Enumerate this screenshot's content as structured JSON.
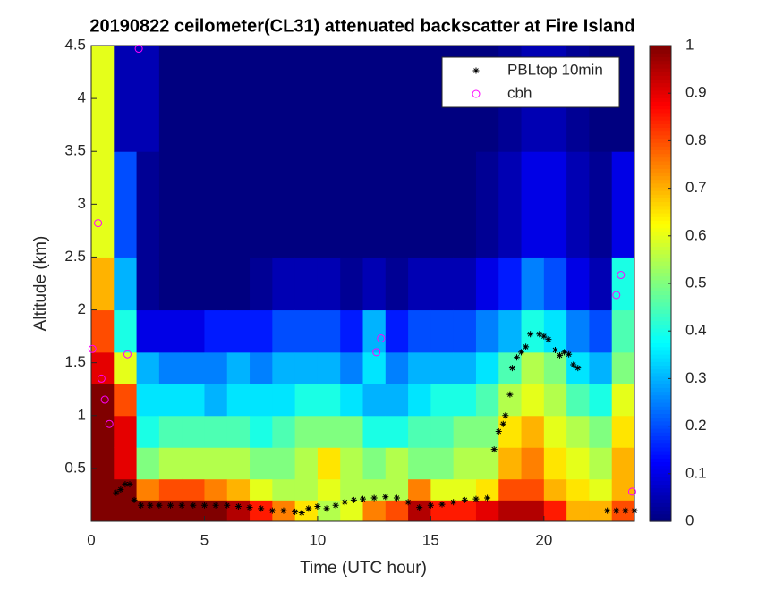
{
  "chart_data": {
    "type": "heatmap",
    "title": "20190822 ceilometer(CL31) attenuated backscatter at Fire Island",
    "x_label": "Time (UTC hour)",
    "y_label": "Altitude (km)",
    "xlim": [
      0,
      24
    ],
    "ylim": [
      0,
      4.5
    ],
    "xticks": [
      0,
      5,
      10,
      15,
      20
    ],
    "yticks": [
      0.5,
      1,
      1.5,
      2,
      2.5,
      3,
      3.5,
      4,
      4.5
    ],
    "colormap": "jet",
    "clim": [
      0,
      1
    ],
    "cticks": [
      0,
      0.1,
      0.2,
      0.3,
      0.4,
      0.5,
      0.6,
      0.7,
      0.8,
      0.9,
      1
    ],
    "legend": "upper right",
    "heatmap": {
      "x_edges": [
        0,
        1,
        2,
        3,
        4,
        5,
        6,
        7,
        8,
        9,
        10,
        11,
        12,
        13,
        14,
        15,
        16,
        17,
        18,
        19,
        20,
        21,
        22,
        23,
        24
      ],
      "y_edges": [
        0,
        0.2,
        0.4,
        0.7,
        1.0,
        1.3,
        1.6,
        2.0,
        2.5,
        3.5,
        4.5
      ],
      "values": [
        [
          1,
          1,
          1,
          1,
          1,
          0.9,
          0.8,
          0.7,
          0.6,
          0.6
        ],
        [
          1,
          1,
          0.9,
          0.9,
          0.8,
          0.6,
          0.4,
          0.3,
          0.2,
          0.05
        ],
        [
          1,
          0.75,
          0.5,
          0.4,
          0.35,
          0.3,
          0.1,
          0.02,
          0.02,
          0.05
        ],
        [
          1,
          0.8,
          0.55,
          0.45,
          0.35,
          0.25,
          0.1,
          0,
          0,
          0
        ],
        [
          1,
          0.8,
          0.55,
          0.45,
          0.35,
          0.25,
          0.1,
          0,
          0,
          0
        ],
        [
          1,
          0.75,
          0.55,
          0.45,
          0.3,
          0.25,
          0.15,
          0,
          0,
          0
        ],
        [
          0.95,
          0.7,
          0.55,
          0.45,
          0.35,
          0.3,
          0.15,
          0,
          0,
          0
        ],
        [
          0.85,
          0.6,
          0.5,
          0.4,
          0.35,
          0.25,
          0.15,
          0.02,
          0,
          0
        ],
        [
          0.75,
          0.55,
          0.5,
          0.45,
          0.35,
          0.3,
          0.2,
          0.05,
          0,
          0
        ],
        [
          0.65,
          0.55,
          0.55,
          0.5,
          0.4,
          0.3,
          0.2,
          0.05,
          0,
          0
        ],
        [
          0.55,
          0.6,
          0.65,
          0.5,
          0.4,
          0.3,
          0.2,
          0.05,
          0,
          0
        ],
        [
          0.6,
          0.55,
          0.55,
          0.5,
          0.35,
          0.25,
          0.15,
          0.02,
          0,
          0
        ],
        [
          0.75,
          0.55,
          0.5,
          0.4,
          0.3,
          0.35,
          0.3,
          0.05,
          0,
          0
        ],
        [
          0.8,
          0.55,
          0.55,
          0.4,
          0.3,
          0.25,
          0.15,
          0.02,
          0,
          0
        ],
        [
          0.95,
          0.75,
          0.5,
          0.45,
          0.35,
          0.3,
          0.2,
          0.05,
          0,
          0
        ],
        [
          0.85,
          0.6,
          0.5,
          0.45,
          0.4,
          0.3,
          0.2,
          0.05,
          0,
          0
        ],
        [
          0.85,
          0.6,
          0.55,
          0.5,
          0.4,
          0.3,
          0.2,
          0.05,
          0,
          0
        ],
        [
          0.9,
          0.65,
          0.55,
          0.5,
          0.45,
          0.35,
          0.25,
          0.1,
          0.02,
          0
        ],
        [
          0.95,
          0.8,
          0.7,
          0.65,
          0.55,
          0.45,
          0.3,
          0.15,
          0.05,
          0.02
        ],
        [
          0.95,
          0.8,
          0.75,
          0.7,
          0.6,
          0.55,
          0.4,
          0.25,
          0.1,
          0.05
        ],
        [
          0.85,
          0.7,
          0.65,
          0.6,
          0.55,
          0.5,
          0.35,
          0.2,
          0.1,
          0.05
        ],
        [
          0.7,
          0.65,
          0.6,
          0.55,
          0.45,
          0.35,
          0.25,
          0.1,
          0.05,
          0.02
        ],
        [
          0.7,
          0.6,
          0.55,
          0.5,
          0.4,
          0.3,
          0.2,
          0.05,
          0.02,
          0
        ],
        [
          0.8,
          0.7,
          0.7,
          0.65,
          0.6,
          0.5,
          0.45,
          0.4,
          0.1,
          0
        ]
      ]
    },
    "series": [
      {
        "name": "PBLtop 10min",
        "color": "#000000",
        "marker": "asterisk",
        "x": [
          1.1,
          1.3,
          1.5,
          1.7,
          1.9,
          2.2,
          2.6,
          3,
          3.5,
          4,
          4.5,
          5,
          5.5,
          6,
          6.5,
          7,
          7.5,
          8,
          8.5,
          9,
          9.3,
          9.6,
          10,
          10.4,
          10.8,
          11.2,
          11.6,
          12,
          12.5,
          13,
          13.5,
          14,
          14.5,
          15,
          15.5,
          16,
          16.5,
          17,
          17.5,
          17.8,
          18,
          18.2,
          18.3,
          18.5,
          18.6,
          18.8,
          19,
          19.2,
          19.4,
          19.8,
          20,
          20.2,
          20.5,
          20.7,
          20.9,
          21.1,
          21.3,
          21.5,
          22.8,
          23.2,
          23.6,
          24
        ],
        "values": [
          0.27,
          0.3,
          0.35,
          0.35,
          0.2,
          0.15,
          0.15,
          0.15,
          0.15,
          0.15,
          0.15,
          0.15,
          0.15,
          0.15,
          0.14,
          0.13,
          0.12,
          0.1,
          0.1,
          0.09,
          0.08,
          0.12,
          0.14,
          0.12,
          0.15,
          0.18,
          0.2,
          0.21,
          0.22,
          0.23,
          0.22,
          0.18,
          0.13,
          0.15,
          0.16,
          0.18,
          0.2,
          0.21,
          0.22,
          0.68,
          0.85,
          0.92,
          1.0,
          1.2,
          1.45,
          1.55,
          1.6,
          1.65,
          1.77,
          1.77,
          1.75,
          1.72,
          1.62,
          1.57,
          1.6,
          1.58,
          1.48,
          1.45,
          0.1,
          0.1,
          0.1,
          0.1
        ]
      },
      {
        "name": "cbh",
        "color": "#ff00ff",
        "marker": "circle",
        "x": [
          0.05,
          0.3,
          0.45,
          0.6,
          0.8,
          1.6,
          2.1,
          12.6,
          12.8,
          23.2,
          23.4,
          23.9
        ],
        "values": [
          1.63,
          2.82,
          1.35,
          1.15,
          0.92,
          1.58,
          4.47,
          1.6,
          1.73,
          2.14,
          2.33,
          0.28
        ]
      }
    ]
  }
}
